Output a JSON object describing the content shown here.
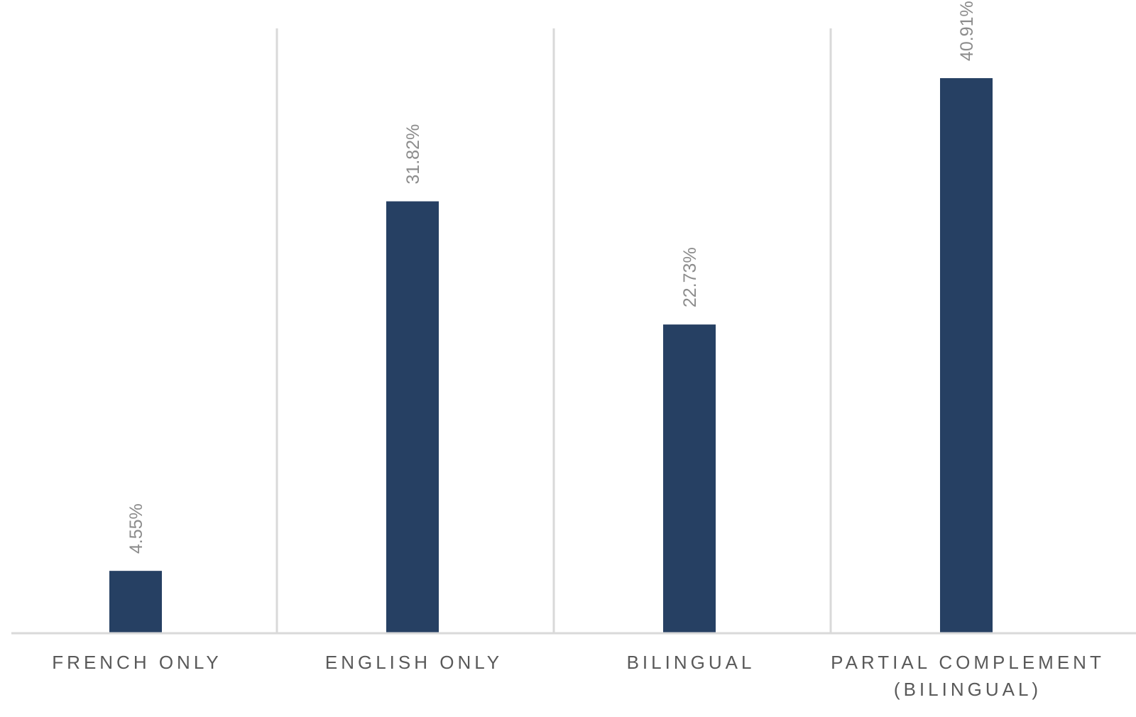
{
  "chart_data": {
    "type": "bar",
    "categories": [
      [
        "FRENCH ONLY"
      ],
      [
        "ENGLISH ONLY"
      ],
      [
        "BILINGUAL"
      ],
      [
        "PARTIAL COMPLEMENT",
        "(BILINGUAL)"
      ]
    ],
    "values": [
      4.55,
      31.82,
      22.73,
      40.91
    ],
    "data_labels": [
      "4.55%",
      "31.82%",
      "22.73%",
      "40.91%"
    ],
    "title": "",
    "xlabel": "",
    "ylabel": "",
    "ylim": [
      0,
      45
    ],
    "grid": false,
    "legend": "none",
    "bar_color": "#264063"
  }
}
